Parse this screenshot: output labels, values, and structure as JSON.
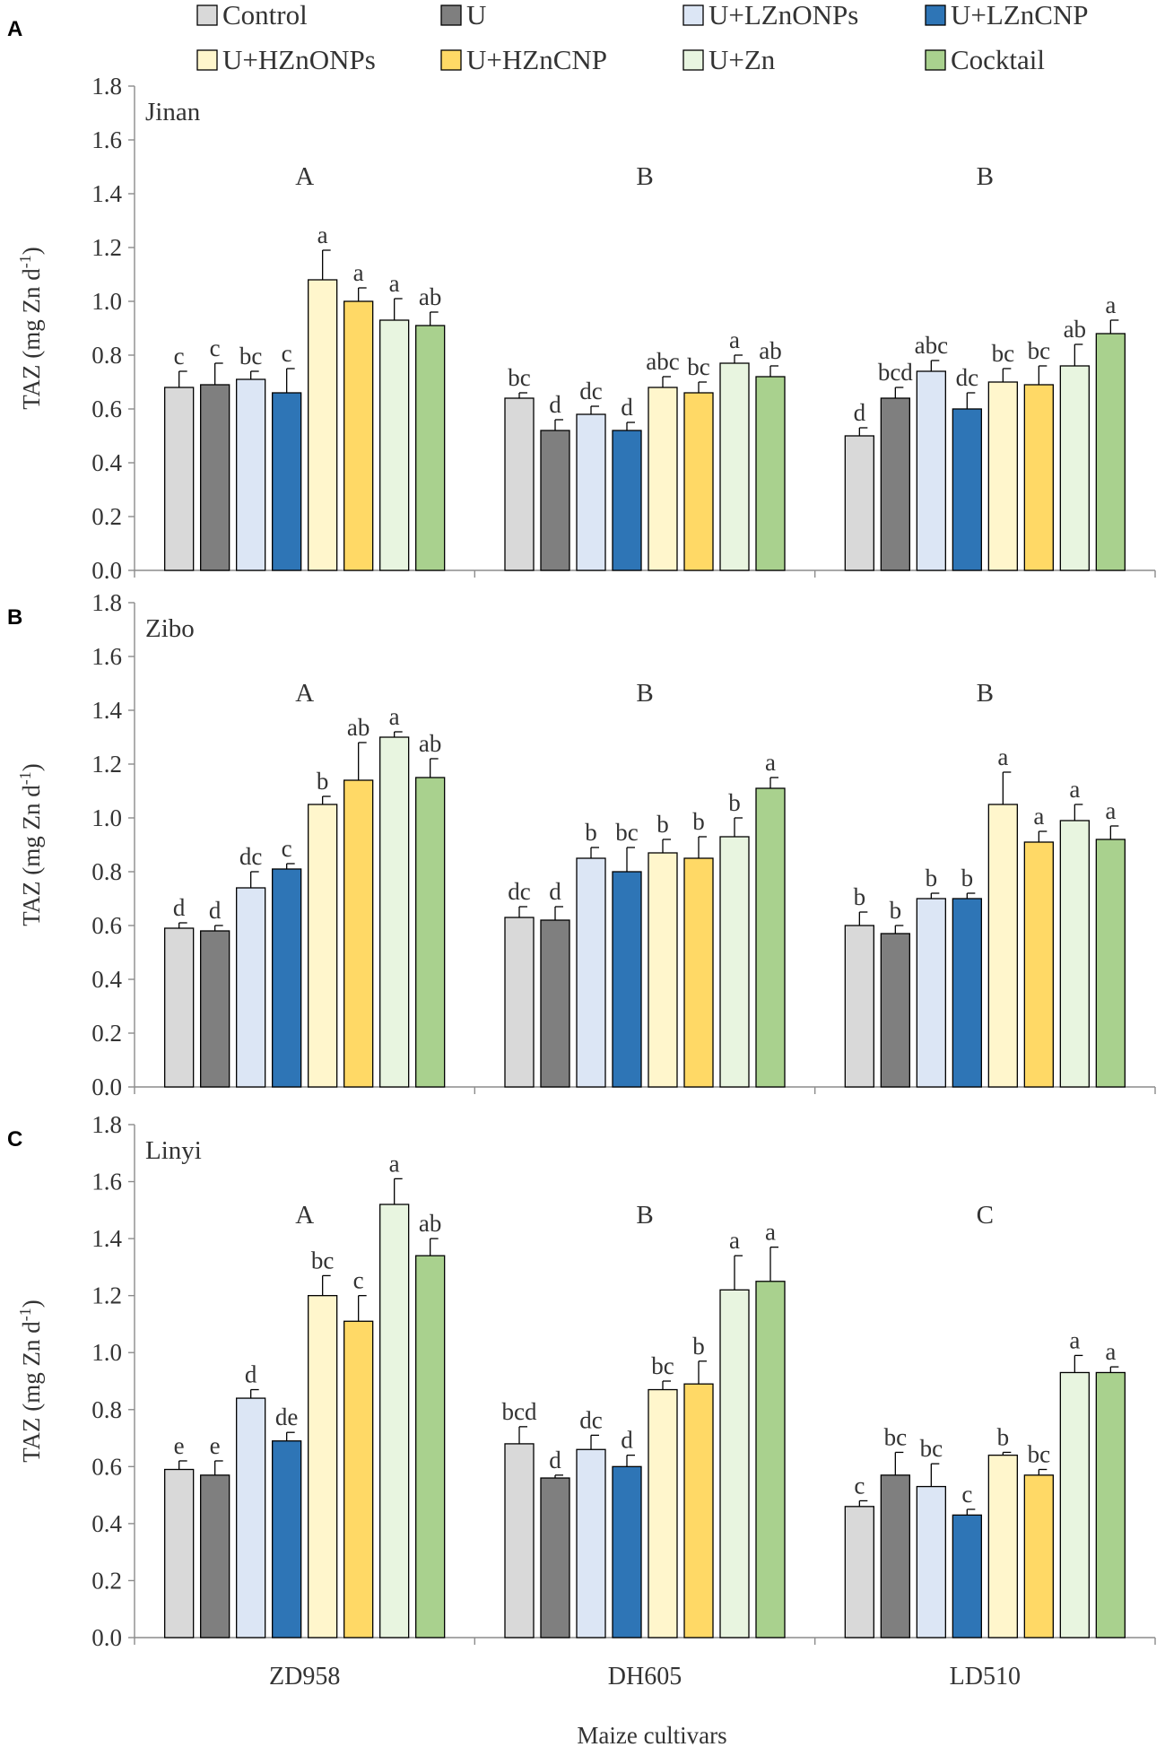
{
  "legend": [
    {
      "name": "Control",
      "color": "#d9d9d9"
    },
    {
      "name": "U",
      "color": "#7f7f7f"
    },
    {
      "name": "U+LZnONPs",
      "color": "#dce6f5"
    },
    {
      "name": "U+LZnCNP",
      "color": "#2e75b6"
    },
    {
      "name": "U+HZnONPs",
      "color": "#fff6cc"
    },
    {
      "name": "U+HZnCNP",
      "color": "#ffd966"
    },
    {
      "name": "U+Zn",
      "color": "#e8f5e0"
    },
    {
      "name": "Cocktail",
      "color": "#a9d18e"
    }
  ],
  "xlabel": "Maize cultivars",
  "chart_data": [
    {
      "type": "bar",
      "panel": "A",
      "title": "Jinan",
      "ylabel": "TAZ (mg Zn d",
      "ylabel_sup": "-1",
      "ylabel_close": ")",
      "ylim": [
        0,
        1.8
      ],
      "yticks": [
        "0.0",
        "0.2",
        "0.4",
        "0.6",
        "0.8",
        "1.0",
        "1.2",
        "1.4",
        "1.6",
        "1.8"
      ],
      "categories": [
        "ZD958",
        "DH605",
        "LD510"
      ],
      "show_category_labels": false,
      "group_letters": [
        "A",
        "B",
        "B"
      ],
      "series": [
        {
          "name": "Control",
          "values": [
            0.68,
            0.64,
            0.5
          ],
          "errors": [
            0.06,
            0.02,
            0.03
          ],
          "letters": [
            "c",
            "bc",
            "d"
          ]
        },
        {
          "name": "U",
          "values": [
            0.69,
            0.52,
            0.64
          ],
          "errors": [
            0.08,
            0.04,
            0.04
          ],
          "letters": [
            "c",
            "d",
            "bcd"
          ]
        },
        {
          "name": "U+LZnONPs",
          "values": [
            0.71,
            0.58,
            0.74
          ],
          "errors": [
            0.03,
            0.03,
            0.04
          ],
          "letters": [
            "bc",
            "dc",
            "abc"
          ]
        },
        {
          "name": "U+LZnCNP",
          "values": [
            0.66,
            0.52,
            0.6
          ],
          "errors": [
            0.09,
            0.03,
            0.06
          ],
          "letters": [
            "c",
            "d",
            "dc"
          ]
        },
        {
          "name": "U+HZnONPs",
          "values": [
            1.08,
            0.68,
            0.7
          ],
          "errors": [
            0.11,
            0.04,
            0.05
          ],
          "letters": [
            "a",
            "abc",
            "bc"
          ]
        },
        {
          "name": "U+HZnCNP",
          "values": [
            1.0,
            0.66,
            0.69
          ],
          "errors": [
            0.05,
            0.04,
            0.07
          ],
          "letters": [
            "a",
            "bc",
            "bc"
          ]
        },
        {
          "name": "U+Zn",
          "values": [
            0.93,
            0.77,
            0.76
          ],
          "errors": [
            0.08,
            0.03,
            0.08
          ],
          "letters": [
            "a",
            "a",
            "ab"
          ]
        },
        {
          "name": "Cocktail",
          "values": [
            0.91,
            0.72,
            0.88
          ],
          "errors": [
            0.05,
            0.04,
            0.05
          ],
          "letters": [
            "ab",
            "ab",
            "a"
          ]
        }
      ]
    },
    {
      "type": "bar",
      "panel": "B",
      "title": "Zibo",
      "ylabel": "TAZ (mg Zn d",
      "ylabel_sup": "-1",
      "ylabel_close": ")",
      "ylim": [
        0,
        1.8
      ],
      "yticks": [
        "0.0",
        "0.2",
        "0.4",
        "0.6",
        "0.8",
        "1.0",
        "1.2",
        "1.4",
        "1.6",
        "1.8"
      ],
      "categories": [
        "ZD958",
        "DH605",
        "LD510"
      ],
      "show_category_labels": false,
      "group_letters": [
        "A",
        "B",
        "B"
      ],
      "series": [
        {
          "name": "Control",
          "values": [
            0.59,
            0.63,
            0.6
          ],
          "errors": [
            0.02,
            0.04,
            0.05
          ],
          "letters": [
            "d",
            "dc",
            "b"
          ]
        },
        {
          "name": "U",
          "values": [
            0.58,
            0.62,
            0.57
          ],
          "errors": [
            0.02,
            0.05,
            0.03
          ],
          "letters": [
            "d",
            "d",
            "b"
          ]
        },
        {
          "name": "U+LZnONPs",
          "values": [
            0.74,
            0.85,
            0.7
          ],
          "errors": [
            0.06,
            0.04,
            0.02
          ],
          "letters": [
            "dc",
            "b",
            "b"
          ]
        },
        {
          "name": "U+LZnCNP",
          "values": [
            0.81,
            0.8,
            0.7
          ],
          "errors": [
            0.02,
            0.09,
            0.02
          ],
          "letters": [
            "c",
            "bc",
            "b"
          ]
        },
        {
          "name": "U+HZnONPs",
          "values": [
            1.05,
            0.87,
            1.05
          ],
          "errors": [
            0.03,
            0.05,
            0.12
          ],
          "letters": [
            "b",
            "b",
            "a"
          ]
        },
        {
          "name": "U+HZnCNP",
          "values": [
            1.14,
            0.85,
            0.91
          ],
          "errors": [
            0.14,
            0.08,
            0.04
          ],
          "letters": [
            "ab",
            "b",
            "a"
          ]
        },
        {
          "name": "U+Zn",
          "values": [
            1.3,
            0.93,
            0.99
          ],
          "errors": [
            0.02,
            0.07,
            0.06
          ],
          "letters": [
            "a",
            "b",
            "a"
          ]
        },
        {
          "name": "Cocktail",
          "values": [
            1.15,
            1.11,
            0.92
          ],
          "errors": [
            0.07,
            0.04,
            0.05
          ],
          "letters": [
            "ab",
            "a",
            "a"
          ]
        }
      ]
    },
    {
      "type": "bar",
      "panel": "C",
      "title": "Linyi",
      "ylabel": "TAZ (mg Zn d",
      "ylabel_sup": "-1",
      "ylabel_close": ")",
      "ylim": [
        0,
        1.8
      ],
      "yticks": [
        "0.0",
        "0.2",
        "0.4",
        "0.6",
        "0.8",
        "1.0",
        "1.2",
        "1.4",
        "1.6",
        "1.8"
      ],
      "categories": [
        "ZD958",
        "DH605",
        "LD510"
      ],
      "show_category_labels": true,
      "group_letters": [
        "A",
        "B",
        "C"
      ],
      "series": [
        {
          "name": "Control",
          "values": [
            0.59,
            0.68,
            0.46
          ],
          "errors": [
            0.03,
            0.06,
            0.02
          ],
          "letters": [
            "e",
            "bcd",
            "c"
          ]
        },
        {
          "name": "U",
          "values": [
            0.57,
            0.56,
            0.57
          ],
          "errors": [
            0.05,
            0.01,
            0.08
          ],
          "letters": [
            "e",
            "d",
            "bc"
          ]
        },
        {
          "name": "U+LZnONPs",
          "values": [
            0.84,
            0.66,
            0.53
          ],
          "errors": [
            0.03,
            0.05,
            0.08
          ],
          "letters": [
            "d",
            "dc",
            "bc"
          ]
        },
        {
          "name": "U+LZnCNP",
          "values": [
            0.69,
            0.6,
            0.43
          ],
          "errors": [
            0.03,
            0.04,
            0.02
          ],
          "letters": [
            "de",
            "d",
            "c"
          ]
        },
        {
          "name": "U+HZnONPs",
          "values": [
            1.2,
            0.87,
            0.64
          ],
          "errors": [
            0.07,
            0.03,
            0.01
          ],
          "letters": [
            "bc",
            "bc",
            "b"
          ]
        },
        {
          "name": "U+HZnCNP",
          "values": [
            1.11,
            0.89,
            0.57
          ],
          "errors": [
            0.09,
            0.08,
            0.02
          ],
          "letters": [
            "c",
            "b",
            "bc"
          ]
        },
        {
          "name": "U+Zn",
          "values": [
            1.52,
            1.22,
            0.93
          ],
          "errors": [
            0.09,
            0.12,
            0.06
          ],
          "letters": [
            "a",
            "a",
            "a"
          ]
        },
        {
          "name": "Cocktail",
          "values": [
            1.34,
            1.25,
            0.93
          ],
          "errors": [
            0.06,
            0.12,
            0.02
          ],
          "letters": [
            "ab",
            "a",
            "a"
          ]
        }
      ]
    }
  ]
}
